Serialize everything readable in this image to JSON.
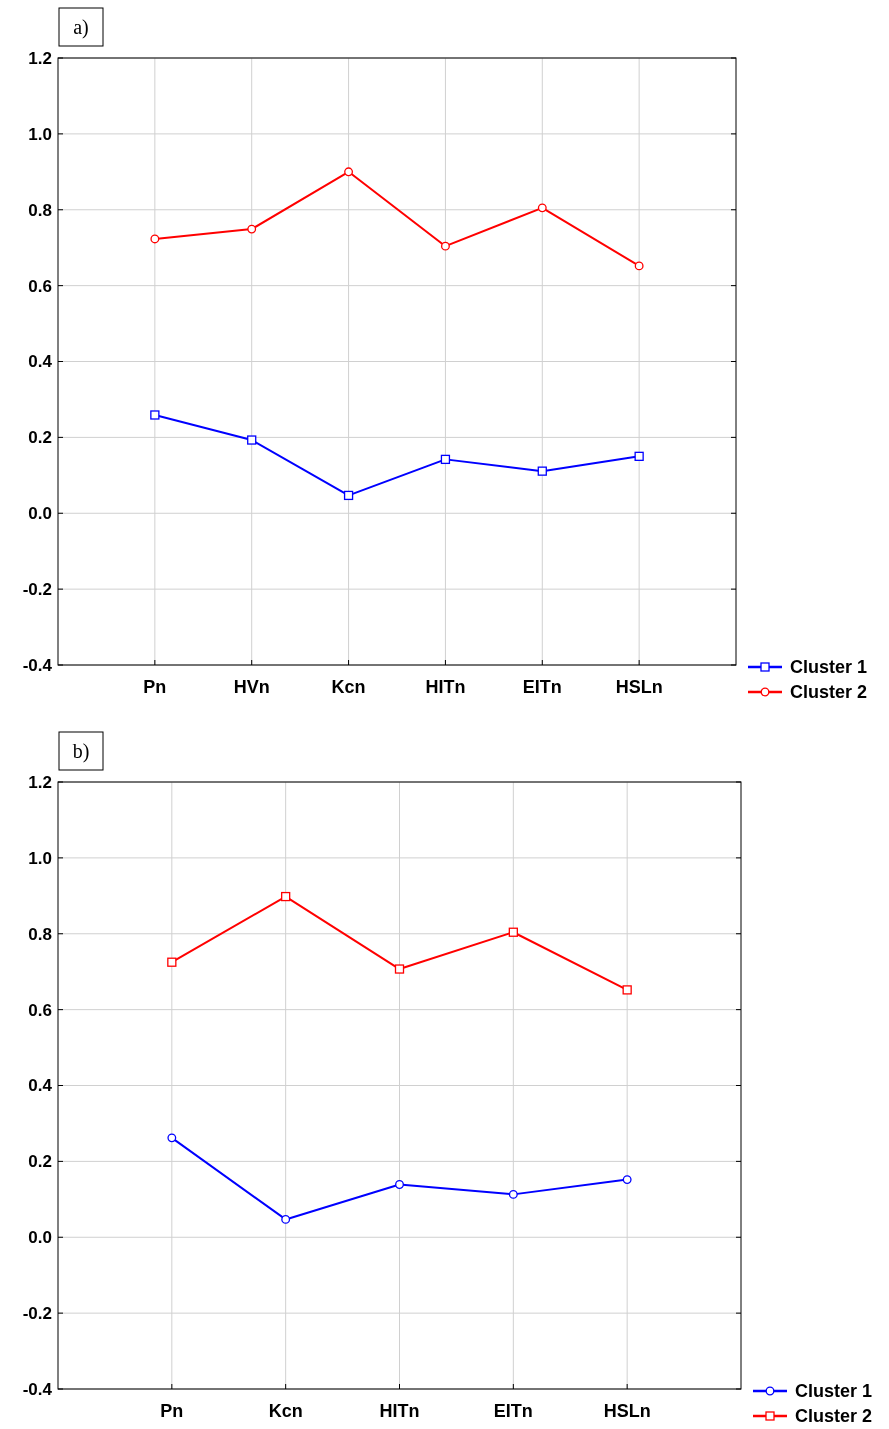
{
  "chart_data": [
    {
      "type": "line",
      "title": "a)",
      "categories": [
        "Pn",
        "HVn",
        "Kcn",
        "HITn",
        "EITn",
        "HSLn"
      ],
      "series": [
        {
          "name": "Cluster 1",
          "color": "#0000ff",
          "marker": "square",
          "values": [
            0.259,
            0.193,
            0.047,
            0.142,
            0.111,
            0.15
          ]
        },
        {
          "name": "Cluster 2",
          "color": "#ff0000",
          "marker": "circle",
          "values": [
            0.723,
            0.749,
            0.9,
            0.704,
            0.805,
            0.652
          ]
        }
      ],
      "ylim": [
        -0.4,
        1.2
      ],
      "yticks": [
        {
          "value": -0.4,
          "label": "-0.4"
        },
        {
          "value": -0.2,
          "label": "-0.2"
        },
        {
          "value": 0,
          "label": "0.0"
        },
        {
          "value": 0.2,
          "label": "0.2"
        },
        {
          "value": 0.4,
          "label": "0.4"
        },
        {
          "value": 0.6,
          "label": "0.6"
        },
        {
          "value": 0.8,
          "label": "0.8"
        },
        {
          "value": 1,
          "label": "1.0"
        },
        {
          "value": 1.2,
          "label": "1.2"
        }
      ],
      "grid": true,
      "legend": "bottom right"
    },
    {
      "type": "line",
      "title": "b)",
      "categories": [
        "Pn",
        "Kcn",
        "HITn",
        "EITn",
        "HSLn"
      ],
      "series": [
        {
          "name": "Cluster 1",
          "color": "#0000ff",
          "marker": "circle",
          "values": [
            0.262,
            0.047,
            0.139,
            0.113,
            0.152
          ]
        },
        {
          "name": "Cluster 2",
          "color": "#ff0000",
          "marker": "square",
          "values": [
            0.725,
            0.898,
            0.707,
            0.804,
            0.652
          ]
        }
      ],
      "ylim": [
        -0.4,
        1.2
      ],
      "yticks": [
        {
          "value": -0.4,
          "label": "-0.4"
        },
        {
          "value": -0.2,
          "label": "-0.2"
        },
        {
          "value": 0,
          "label": "0.0"
        },
        {
          "value": 0.2,
          "label": "0.2"
        },
        {
          "value": 0.4,
          "label": "0.4"
        },
        {
          "value": 0.6,
          "label": "0.6"
        },
        {
          "value": 0.8,
          "label": "0.8"
        },
        {
          "value": 1,
          "label": "1.0"
        },
        {
          "value": 1.2,
          "label": "1.2"
        }
      ],
      "grid": true,
      "legend": "bottom right"
    }
  ]
}
